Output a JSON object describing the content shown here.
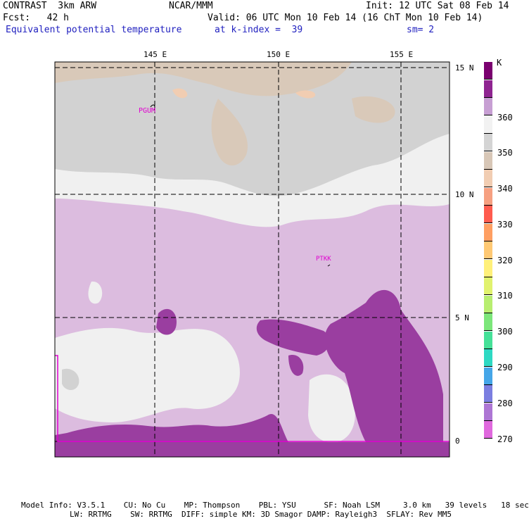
{
  "header": {
    "model_name": "CONTRAST  3km ARW",
    "org": "NCAR/MMM",
    "init": "Init: 12 UTC Sat 08 Feb 14",
    "fcst": "Fcst:   42 h",
    "valid": "Valid: 06 UTC Mon 10 Feb 14 (16 ChT Mon 10 Feb 14)",
    "field": "Equivalent potential temperature",
    "level": "at k-index =  39",
    "smoothing": "sm= 2"
  },
  "map": {
    "lon_labels": [
      "145 E",
      "150 E",
      "155 E"
    ],
    "lat_labels": [
      "15 N",
      "10 N",
      "5 N",
      "0"
    ],
    "stations": [
      "PGUM",
      "PTKK"
    ]
  },
  "legend": {
    "unit": "K",
    "labels": [
      "360",
      "350",
      "340",
      "330",
      "320",
      "310",
      "300",
      "290",
      "280",
      "270"
    ],
    "colors": [
      "#7a006f",
      "#8f2491",
      "#c79fd3",
      "#f2f2f2",
      "#d4d4d4",
      "#d8c7b7",
      "#f1cdb2",
      "#f6a081",
      "#ff5b4e",
      "#ff9f62",
      "#ffc974",
      "#fff07a",
      "#e1f26e",
      "#b8ee70",
      "#7ce67a",
      "#45e198",
      "#2ed9c3",
      "#45a6e8",
      "#7b7ee0",
      "#ad76d4",
      "#e069de"
    ]
  },
  "footer": {
    "line1": "Model Info: V3.5.1    CU: No Cu    MP: Thompson    PBL: YSU      SF: Noah LSM     3.0 km   39 levels   18 sec",
    "line2": "LW: RRTMG    SW: RRTMG  DIFF: simple KM: 3D Smagor DAMP: Rayleigh3  SFLAY: Rev MM5"
  }
}
